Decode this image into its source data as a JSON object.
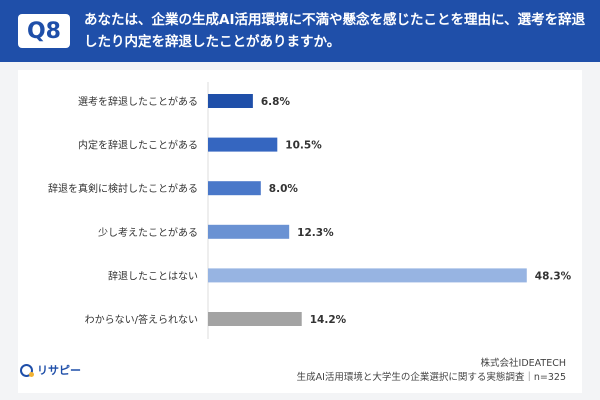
{
  "header": {
    "badge": "Q8",
    "title": "あなたは、企業の生成AI活用環境に不満や懸念を感じたことを理由に、選考を辞退したり内定を辞退したことがありますか。"
  },
  "chart_data": {
    "type": "bar",
    "orientation": "horizontal",
    "categories": [
      "選考を辞退したことがある",
      "内定を辞退したことがある",
      "辞退を真剣に検討したことがある",
      "少し考えたことがある",
      "辞退したことはない",
      "わからない/答えられない"
    ],
    "values": [
      6.8,
      10.5,
      8.0,
      12.3,
      48.3,
      14.2
    ],
    "value_labels": [
      "6.8%",
      "10.5%",
      "8.0%",
      "12.3%",
      "48.3%",
      "14.2%"
    ],
    "colors": [
      "#1f4fa9",
      "#3566c0",
      "#4a78c9",
      "#6a92d3",
      "#97b4e2",
      "#a3a3a3"
    ],
    "xlim": [
      0,
      50
    ],
    "grid": false,
    "legend": "none"
  },
  "footer": {
    "logo": "リサピー",
    "company": "株式会社IDEATECH",
    "source": "生成AI活用環境と大学生の企業選択に関する実態調査｜n=325"
  }
}
